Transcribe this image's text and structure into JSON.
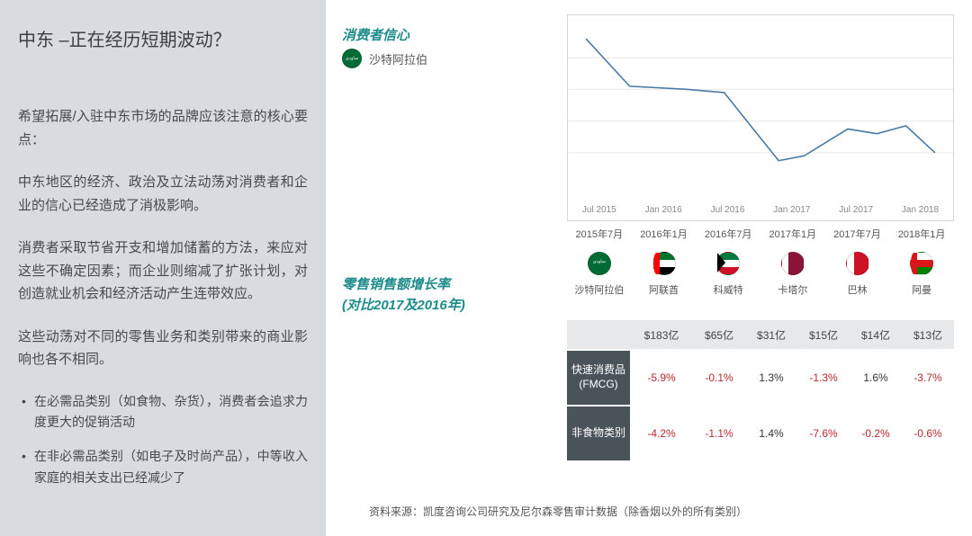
{
  "sidebar": {
    "title": "中东 –正在经历短期波动？",
    "p1": "希望拓展/入驻中东市场的品牌应该注意的核心要点：",
    "p2": "中东地区的经济、政治及立法动荡对消费者和企业的信心已经造成了消极影响。",
    "p3": "消费者采取节省开支和增加储蓄的方法，来应对这些不确定因素；而企业则缩减了扩张计划，对创造就业机会和经济活动产生连带效应。",
    "p4": "这些动荡对不同的零售业务和类别带来的商业影响也各不相同。",
    "b1": "在必需品类别（如食物、杂货），消费者会追求力度更大的促销活动",
    "b2": "在非必需品类别（如电子及时尚产品），中等收入家庭的相关支出已经减少了"
  },
  "consumer_confidence": {
    "title": "消费者信心",
    "legend_country": "沙特阿拉伯",
    "chart": {
      "type": "line",
      "x_labels_inner": [
        "Jul 2015",
        "Jan 2016",
        "Jul 2016",
        "Jan 2017",
        "Jul 2017",
        "Jan 2018"
      ],
      "x_labels_outer": [
        "2015年7月",
        "2016年1月",
        "2016年7月",
        "2017年1月",
        "2017年7月",
        "2018年1月"
      ],
      "points": [
        {
          "x": 0.02,
          "y": 0.92
        },
        {
          "x": 0.14,
          "y": 0.62
        },
        {
          "x": 0.3,
          "y": 0.6
        },
        {
          "x": 0.4,
          "y": 0.58
        },
        {
          "x": 0.48,
          "y": 0.35
        },
        {
          "x": 0.55,
          "y": 0.15
        },
        {
          "x": 0.62,
          "y": 0.18
        },
        {
          "x": 0.74,
          "y": 0.35
        },
        {
          "x": 0.82,
          "y": 0.32
        },
        {
          "x": 0.9,
          "y": 0.37
        },
        {
          "x": 0.98,
          "y": 0.2
        }
      ],
      "line_color": "#4a7ba6",
      "line_width": 1.6,
      "grid_color": "#eaeaea",
      "background": "#ffffff",
      "y_range": [
        0,
        1
      ]
    }
  },
  "retail_growth": {
    "title_l1": "零售销售额增长率",
    "title_l2": "(对比2017及2016年)",
    "countries": [
      {
        "name": "沙特阿拉伯",
        "flag": "flag-sa",
        "total": "$183亿"
      },
      {
        "name": "阿联酋",
        "flag": "flag-ae",
        "total": "$65亿"
      },
      {
        "name": "科威特",
        "flag": "flag-kw",
        "total": "$31亿"
      },
      {
        "name": "卡塔尔",
        "flag": "flag-qa",
        "total": "$15亿"
      },
      {
        "name": "巴林",
        "flag": "flag-bh",
        "total": "$14亿"
      },
      {
        "name": "阿曼",
        "flag": "flag-om",
        "total": "$13亿"
      }
    ],
    "rows": [
      {
        "label": "快速消费品\n(FMCG)",
        "values": [
          "-5.9%",
          "-0.1%",
          "1.3%",
          "-1.3%",
          "1.6%",
          "-3.7%"
        ]
      },
      {
        "label": "非食物类别",
        "values": [
          "-4.2%",
          "-1.1%",
          "1.4%",
          "-7.6%",
          "-0.2%",
          "-0.6%"
        ]
      }
    ],
    "neg_color": "#b8292f",
    "header_bg": "#4a5358",
    "totals_bg": "#e6e8e9"
  },
  "source": "资料来源：凯度咨询公司研究及尼尔森零售审计数据（除香烟以外的所有类别）"
}
